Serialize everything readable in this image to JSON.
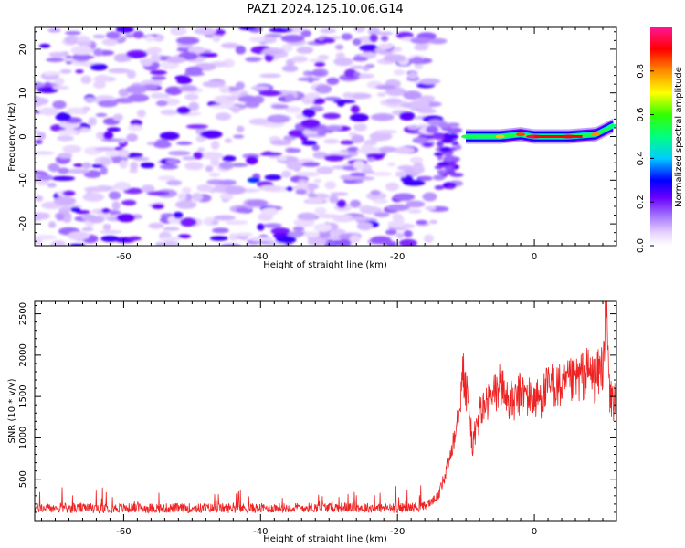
{
  "title": "PAZ1.2024.125.10.06.G14",
  "colorbar": {
    "label": "Normalized spectral amplitude",
    "ticks": [
      "0.0",
      "0.2",
      "0.4",
      "0.6",
      "0.8"
    ],
    "tick_values": [
      0.0,
      0.2,
      0.4,
      0.6,
      0.8
    ],
    "range": [
      0,
      1
    ],
    "colors": [
      "#ffffff",
      "#e6d2ff",
      "#b890ff",
      "#8a2be2",
      "#6a00ff",
      "#0000ff",
      "#00ccff",
      "#00ff00",
      "#ffff00",
      "#ff8c00",
      "#ff0000",
      "#ff1493"
    ]
  },
  "chart_data": [
    {
      "type": "heatmap",
      "title": "",
      "xlabel": "Height of straight line (km)",
      "ylabel": "Frequency (Hz)",
      "xlim": [
        -73,
        12
      ],
      "ylim": [
        -25,
        25
      ],
      "xticks": [
        -60,
        -40,
        -20,
        0
      ],
      "yticks": [
        -20,
        -10,
        0,
        10,
        20
      ],
      "regions": [
        {
          "x_range": [
            -73,
            -14
          ],
          "y_range": [
            -25,
            25
          ],
          "amplitude": 0.15,
          "description_value": "noise"
        },
        {
          "x_range": [
            -14,
            -11
          ],
          "y_range": [
            -12,
            5
          ],
          "amplitude": 0.2
        },
        {
          "x_range": [
            -11,
            12
          ],
          "y_center": 0,
          "amplitude": 0.85
        }
      ],
      "line_peaks": [
        {
          "x": -10,
          "y": 0,
          "v": 0.55
        },
        {
          "x": -5,
          "y": 0,
          "v": 0.75
        },
        {
          "x": -2,
          "y": 0.5,
          "v": 0.85
        },
        {
          "x": 0,
          "y": 0,
          "v": 0.95
        },
        {
          "x": 5,
          "y": 0,
          "v": 0.95
        },
        {
          "x": 9,
          "y": 0.5,
          "v": 0.8
        },
        {
          "x": 11.5,
          "y": 2.5,
          "v": 0.5
        }
      ]
    },
    {
      "type": "line",
      "title": "",
      "xlabel": "Height of straight line (km)",
      "ylabel": "SNR (10 * v/v)",
      "xlim": [
        -73,
        12
      ],
      "ylim": [
        0,
        2650
      ],
      "xticks": [
        -60,
        -40,
        -20,
        0
      ],
      "yticks": [
        500,
        1000,
        1500,
        2000,
        2500
      ],
      "color": "#ee2222",
      "series": [
        {
          "x": [
            -73,
            -60,
            -50,
            -40,
            -30,
            -20,
            -16,
            -14,
            -13,
            -12,
            -11,
            -10.5,
            -10,
            -9.5,
            -9,
            -8,
            -7,
            -6,
            -5,
            -4,
            -3,
            -2,
            -1,
            0,
            1,
            2,
            3,
            4,
            5,
            6,
            7,
            8,
            9,
            10,
            10.5,
            11,
            12
          ],
          "values": [
            150,
            150,
            150,
            150,
            160,
            150,
            170,
            300,
            550,
            900,
            1400,
            1800,
            1600,
            1300,
            900,
            1300,
            1400,
            1500,
            1650,
            1500,
            1400,
            1550,
            1500,
            1450,
            1500,
            1600,
            1650,
            1600,
            1650,
            1700,
            1750,
            1800,
            1700,
            1900,
            2600,
            1500,
            1400
          ]
        }
      ]
    }
  ]
}
